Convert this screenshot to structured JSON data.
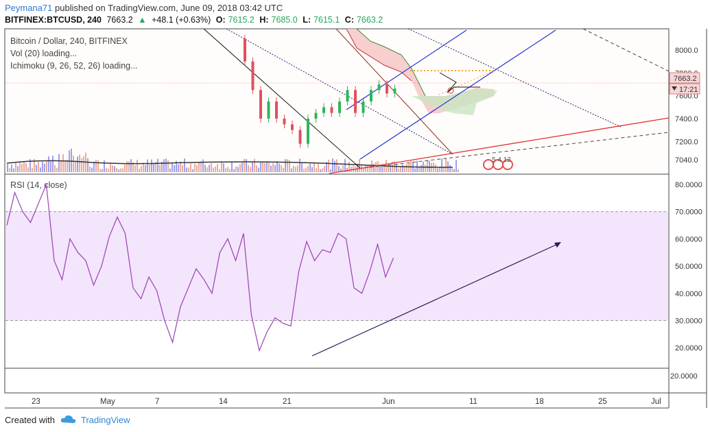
{
  "header": {
    "author": "Peymana71",
    "published_text": "published on TradingView.com, June 09, 2018 03:42 UTC",
    "symbol": "BITFINEX:BTCUSD, 240",
    "price": "7663.2",
    "change": "+48.1 (+0.63%)",
    "o_label": "O:",
    "o_value": "7615.2",
    "h_label": "H:",
    "h_value": "7685.0",
    "l_label": "L:",
    "l_value": "7615.1",
    "c_label": "C:",
    "c_value": "7663.2"
  },
  "main_pane": {
    "title": "Bitcoin / Dollar, 240, BITFINEX",
    "indicator_vol": "Vol (20) loading...",
    "indicator_ichimoku": "Ichimoku (9, 26, 52, 26) loading...",
    "price_label": "7663.2",
    "countdown_label": "17:21",
    "event_label": "5  4 12"
  },
  "rsi_pane": {
    "title": "RSI (14, close)"
  },
  "footer": {
    "created_with": "Created with",
    "brand": "TradingView"
  },
  "colors": {
    "up": "#26a65b",
    "rsi_line": "#9b3fb5",
    "rsi_band": "#f3e5fb",
    "cloud_red": "#f7c6c6",
    "cloud_green": "#c8e6c0",
    "channel_blue": "#2233cc",
    "trend_red": "#e03030",
    "price_tag": "#f5d6d6"
  },
  "chart_data": [
    {
      "type": "candlestick",
      "title": "Bitcoin / Dollar, 240, BITFINEX",
      "x_tick_labels": [
        "23",
        "May",
        "7",
        "14",
        "21",
        "Jun",
        "11",
        "18",
        "25",
        "Jul"
      ],
      "y_tick_labels": [
        "8000.0",
        "7800.0",
        "7600.0",
        "7400.0",
        "7200.0",
        "7040.0"
      ],
      "ylim": [
        6950,
        8150
      ],
      "last_price": 7663.2,
      "close_series": [
        {
          "x": "2018-05-18",
          "y": 8100
        },
        {
          "x": "2018-05-21",
          "y": 7900
        },
        {
          "x": "2018-05-22",
          "y": 7650
        },
        {
          "x": "2018-05-23",
          "y": 7400
        },
        {
          "x": "2018-05-24",
          "y": 7550
        },
        {
          "x": "2018-05-25",
          "y": 7400
        },
        {
          "x": "2018-05-26",
          "y": 7350
        },
        {
          "x": "2018-05-27",
          "y": 7300
        },
        {
          "x": "2018-05-28",
          "y": 7180
        },
        {
          "x": "2018-05-29",
          "y": 7400
        },
        {
          "x": "2018-05-30",
          "y": 7450
        },
        {
          "x": "2018-05-31",
          "y": 7500
        },
        {
          "x": "2018-06-01",
          "y": 7450
        },
        {
          "x": "2018-06-02",
          "y": 7550
        },
        {
          "x": "2018-06-03",
          "y": 7650
        },
        {
          "x": "2018-06-04",
          "y": 7450
        },
        {
          "x": "2018-06-05",
          "y": 7550
        },
        {
          "x": "2018-06-06",
          "y": 7650
        },
        {
          "x": "2018-06-07",
          "y": 7700
        },
        {
          "x": "2018-06-08",
          "y": 7620
        },
        {
          "x": "2018-06-09",
          "y": 7663
        }
      ]
    },
    {
      "type": "line",
      "title": "RSI (14, close)",
      "x_tick_labels": [
        "23",
        "May",
        "7",
        "14",
        "21",
        "Jun",
        "11",
        "18",
        "25",
        "Jul"
      ],
      "y_tick_labels": [
        "80.0000",
        "70.0000",
        "60.0000",
        "50.0000",
        "40.0000",
        "30.0000",
        "20.0000"
      ],
      "ylim": [
        13,
        83
      ],
      "band": [
        30,
        70
      ],
      "x": [
        "2018-04-21",
        "2018-04-22",
        "2018-04-23",
        "2018-04-24",
        "2018-04-25",
        "2018-04-26",
        "2018-04-27",
        "2018-04-28",
        "2018-04-29",
        "2018-04-30",
        "2018-05-01",
        "2018-05-02",
        "2018-05-03",
        "2018-05-04",
        "2018-05-05",
        "2018-05-06",
        "2018-05-07",
        "2018-05-08",
        "2018-05-09",
        "2018-05-10",
        "2018-05-11",
        "2018-05-12",
        "2018-05-13",
        "2018-05-14",
        "2018-05-15",
        "2018-05-16",
        "2018-05-17",
        "2018-05-18",
        "2018-05-19",
        "2018-05-20",
        "2018-05-21",
        "2018-05-22",
        "2018-05-23",
        "2018-05-24",
        "2018-05-25",
        "2018-05-26",
        "2018-05-27",
        "2018-05-28",
        "2018-05-29",
        "2018-05-30",
        "2018-05-31",
        "2018-06-01",
        "2018-06-02",
        "2018-06-03",
        "2018-06-04",
        "2018-06-05",
        "2018-06-06",
        "2018-06-07",
        "2018-06-08",
        "2018-06-09"
      ],
      "values": [
        65,
        77,
        70,
        66,
        73,
        80,
        52,
        45,
        60,
        55,
        52,
        43,
        50,
        61,
        68,
        62,
        42,
        38,
        46,
        41,
        30,
        22,
        35,
        42,
        49,
        45,
        40,
        55,
        60,
        52,
        62,
        32,
        19,
        26,
        31,
        29,
        28,
        48,
        59,
        52,
        56,
        55,
        62,
        60,
        42,
        40,
        48,
        58,
        46,
        53
      ]
    }
  ]
}
